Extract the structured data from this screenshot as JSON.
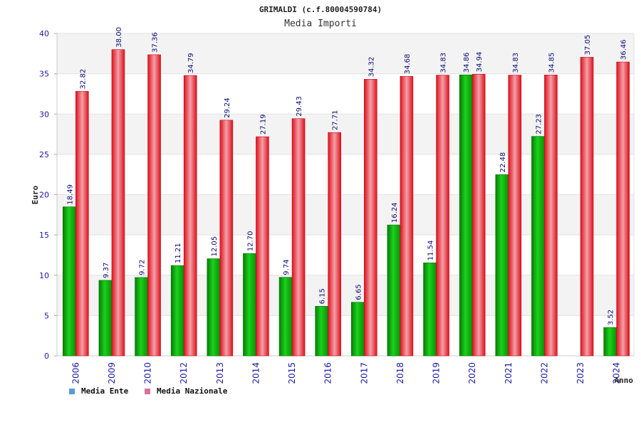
{
  "chart_data": {
    "type": "bar",
    "title": "GRIMALDI (c.f.80004590784)",
    "subtitle": "Media Importi",
    "xlabel": "Anno",
    "ylabel": "Euro",
    "ylim": [
      0,
      40
    ],
    "yticks": [
      0,
      5,
      10,
      15,
      20,
      25,
      30,
      35,
      40
    ],
    "grid": true,
    "legend_position": "bottom-left",
    "categories": [
      "2006",
      "2009",
      "2010",
      "2012",
      "2013",
      "2014",
      "2015",
      "2016",
      "2017",
      "2018",
      "2019",
      "2020",
      "2021",
      "2022",
      "2023",
      "2024"
    ],
    "series": [
      {
        "name": "Media Ente",
        "color": "#22aa22",
        "legend_color": "#5b9bd5",
        "values": [
          18.49,
          9.37,
          9.72,
          11.21,
          12.05,
          12.7,
          9.74,
          6.15,
          6.65,
          16.24,
          11.54,
          34.86,
          22.48,
          27.23,
          null,
          3.52
        ],
        "labels": [
          "18.49",
          "9.37",
          "9.72",
          "11.21",
          "12.05",
          "12.70",
          "9.74",
          "6.15",
          "6.65",
          "16.24",
          "11.54",
          "34.86",
          "22.48",
          "27.23",
          "",
          "3.52"
        ]
      },
      {
        "name": "Media Nazionale",
        "color": "#e8202a",
        "legend_color": "#d9739b",
        "values": [
          32.82,
          38.0,
          37.36,
          34.79,
          29.24,
          27.19,
          29.43,
          27.71,
          34.32,
          34.68,
          34.83,
          34.94,
          34.83,
          34.85,
          37.05,
          36.46
        ],
        "labels": [
          "32.82",
          "38.00",
          "37.36",
          "34.79",
          "29.24",
          "27.19",
          "29.43",
          "27.71",
          "34.32",
          "34.68",
          "34.83",
          "34.94",
          "34.83",
          "34.85",
          "37.05",
          "36.46"
        ]
      }
    ]
  }
}
